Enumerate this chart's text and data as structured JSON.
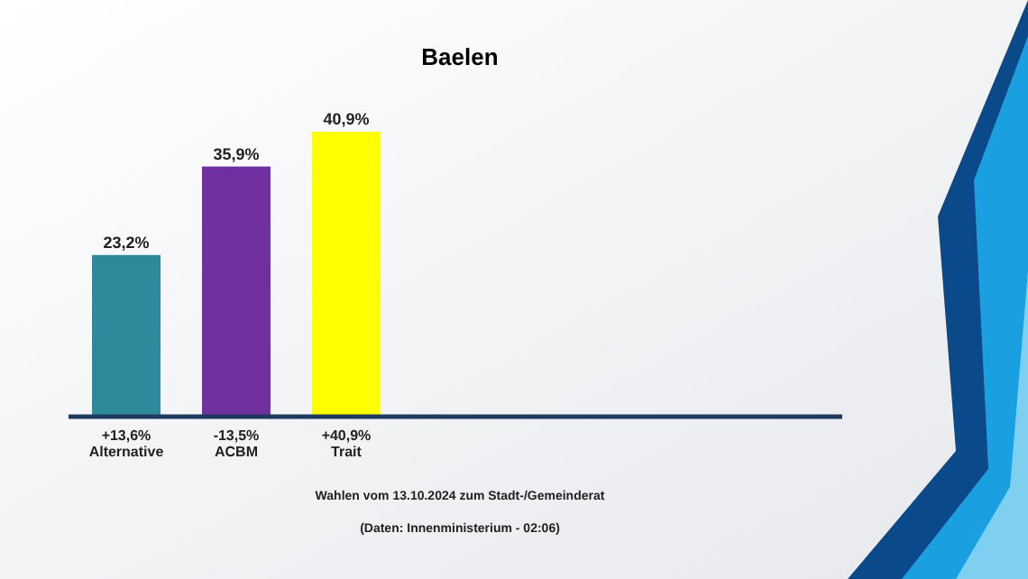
{
  "chart_data": {
    "type": "bar",
    "title": "Baelen",
    "categories": [
      "Alternative",
      "ACBM",
      "Trait"
    ],
    "values": [
      23.2,
      35.9,
      40.9
    ],
    "colors": [
      "#2e8a9a",
      "#7030a0",
      "#ffff00"
    ],
    "value_labels": [
      "23,2%",
      "35,9%",
      "40,9%"
    ],
    "annotations": [
      "+13,6%",
      "-13,5%",
      "+40,9%",
      "Wahlen vom 13.10.2024 zum Stadt-/Gemeinderat",
      "(Daten: Innenministerium - 02:06)"
    ]
  }
}
